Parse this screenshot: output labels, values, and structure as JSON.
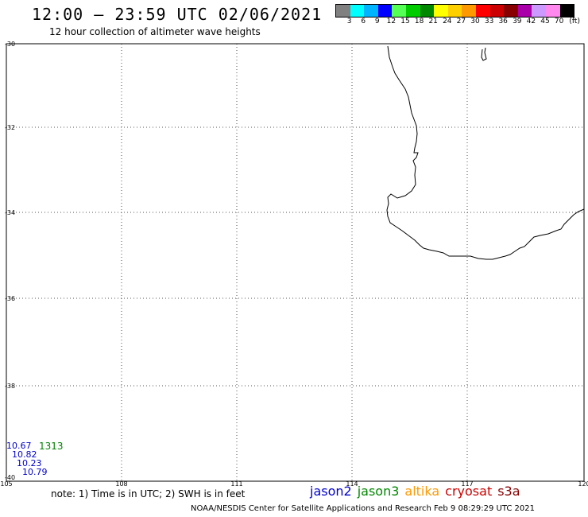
{
  "header": {
    "title": "12:00 — 23:59 UTC 02/06/2021",
    "subtitle": "12 hour collection of altimeter wave heights"
  },
  "scale": {
    "colors": [
      "#808080",
      "#00ffff",
      "#00b4ff",
      "#0000ff",
      "#55ff55",
      "#00cc00",
      "#008800",
      "#ffff00",
      "#ffd000",
      "#ff9900",
      "#ff0000",
      "#cc0000",
      "#880000",
      "#aa00aa",
      "#cc99ff",
      "#ff88ee",
      "#000000"
    ],
    "labels": [
      "3",
      "6",
      "9",
      "12",
      "15",
      "18",
      "21",
      "24",
      "27",
      "30",
      "33",
      "36",
      "39",
      "42",
      "45",
      "70",
      "(ft)"
    ]
  },
  "map": {
    "lat_labels": [
      "-30",
      "-32",
      "-34",
      "-36",
      "-38",
      "-40"
    ],
    "lon_labels": [
      "105",
      "108",
      "111",
      "114",
      "117",
      "120"
    ],
    "coastline_color": "#000000",
    "grid_color": "#555555"
  },
  "observations": {
    "count": "1313",
    "values": [
      "10.67",
      "10.82",
      "10.23",
      "10.79"
    ]
  },
  "footer": {
    "note": "note: 1) Time is in UTC; 2) SWH is in feet",
    "satellites": [
      {
        "name": "jason2",
        "color": "#0000cc"
      },
      {
        "name": "jason3",
        "color": "#008800"
      },
      {
        "name": "altika",
        "color": "#ff9900"
      },
      {
        "name": "cryosat",
        "color": "#cc0000"
      },
      {
        "name": "s3a",
        "color": "#880000"
      }
    ],
    "credit": "NOAA/NESDIS Center for Satellite Applications and Research   Feb  9 08:29:29 UTC 2021"
  }
}
